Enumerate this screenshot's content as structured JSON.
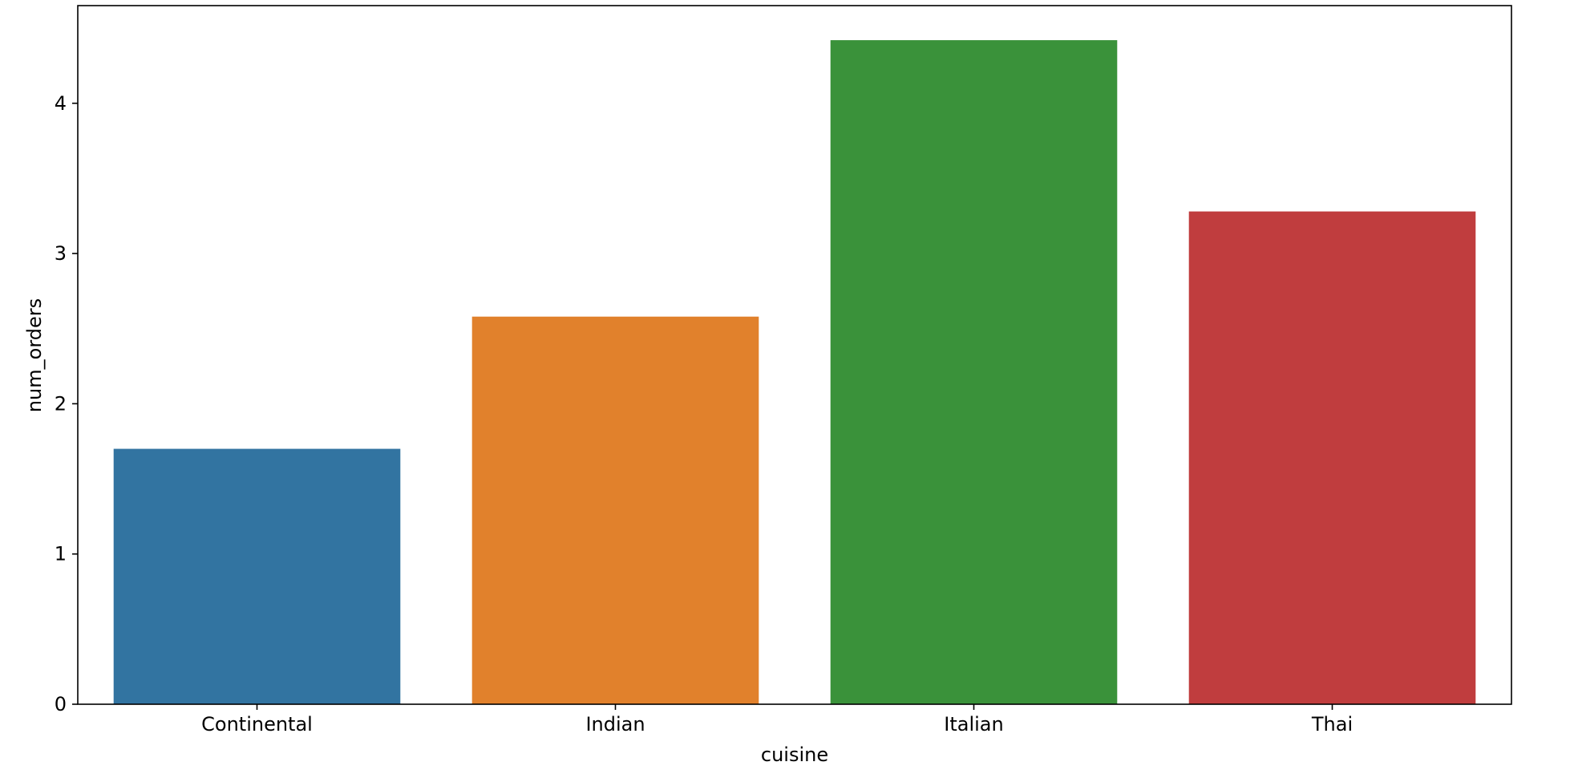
{
  "chart_data": {
    "type": "bar",
    "title": "",
    "xlabel": "cuisine",
    "ylabel": "num_orders",
    "categories": [
      "Continental",
      "Indian",
      "Italian",
      "Thai"
    ],
    "values": [
      1.7,
      2.58,
      4.42,
      3.28
    ],
    "colors": [
      "#3274a1",
      "#e1812c",
      "#3a923a",
      "#c03d3e"
    ],
    "ylim": [
      0,
      4.65
    ],
    "yticks": [
      0,
      1,
      2,
      3,
      4
    ],
    "grid": false,
    "legend": "none"
  }
}
